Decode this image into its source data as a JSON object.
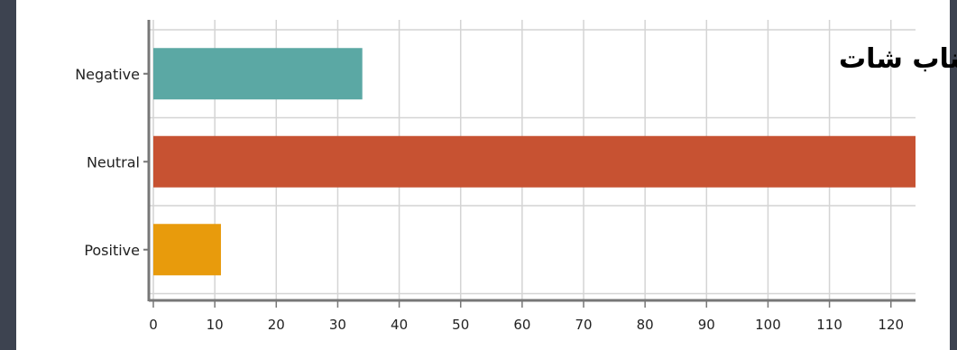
{
  "chart_data": {
    "type": "bar",
    "orientation": "horizontal",
    "title": "سناب شات",
    "categories": [
      "Negative",
      "Neutral",
      "Positive"
    ],
    "values": [
      34,
      124,
      11
    ],
    "colors": [
      "#5ba8a4",
      "#c75232",
      "#e89b0c"
    ],
    "xlim": [
      0,
      124
    ],
    "xticks": [
      "0",
      "10",
      "20",
      "30",
      "40",
      "50",
      "60",
      "70",
      "80",
      "90",
      "100",
      "110",
      "120"
    ],
    "grid": true,
    "legend": "none"
  }
}
